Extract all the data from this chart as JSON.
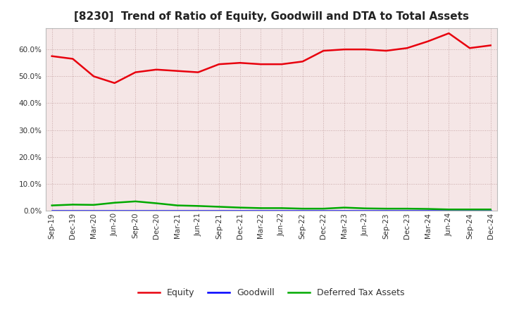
{
  "title": "[8230]  Trend of Ratio of Equity, Goodwill and DTA to Total Assets",
  "x_labels": [
    "Sep-19",
    "Dec-19",
    "Mar-20",
    "Jun-20",
    "Sep-20",
    "Dec-20",
    "Mar-21",
    "Jun-21",
    "Sep-21",
    "Dec-21",
    "Mar-22",
    "Jun-22",
    "Sep-22",
    "Dec-22",
    "Mar-23",
    "Jun-23",
    "Sep-23",
    "Dec-23",
    "Mar-24",
    "Jun-24",
    "Sep-24",
    "Dec-24"
  ],
  "equity": [
    57.5,
    56.5,
    50.0,
    47.5,
    51.5,
    52.5,
    52.0,
    51.5,
    54.5,
    55.0,
    54.5,
    54.5,
    55.5,
    59.5,
    60.0,
    60.0,
    59.5,
    60.5,
    63.0,
    66.0,
    60.5,
    61.5
  ],
  "goodwill": [
    0.0,
    0.0,
    0.0,
    0.0,
    0.0,
    0.0,
    0.0,
    0.0,
    0.0,
    0.0,
    0.0,
    0.0,
    0.0,
    0.0,
    0.0,
    0.0,
    0.0,
    0.0,
    0.0,
    0.0,
    0.0,
    0.0
  ],
  "dta": [
    2.0,
    2.3,
    2.2,
    3.0,
    3.5,
    2.8,
    2.0,
    1.8,
    1.5,
    1.2,
    1.0,
    1.0,
    0.8,
    0.8,
    1.2,
    0.9,
    0.8,
    0.8,
    0.7,
    0.5,
    0.5,
    0.5
  ],
  "equity_color": "#e8000d",
  "goodwill_color": "#0000ff",
  "dta_color": "#00aa00",
  "background_color": "#ffffff",
  "plot_bg_color": "#f5e6e6",
  "grid_color": "#c8a8a8",
  "ylim": [
    0,
    68
  ],
  "yticks": [
    0,
    10,
    20,
    30,
    40,
    50,
    60
  ],
  "title_fontsize": 11,
  "tick_fontsize": 7.5,
  "legend_fontsize": 9
}
